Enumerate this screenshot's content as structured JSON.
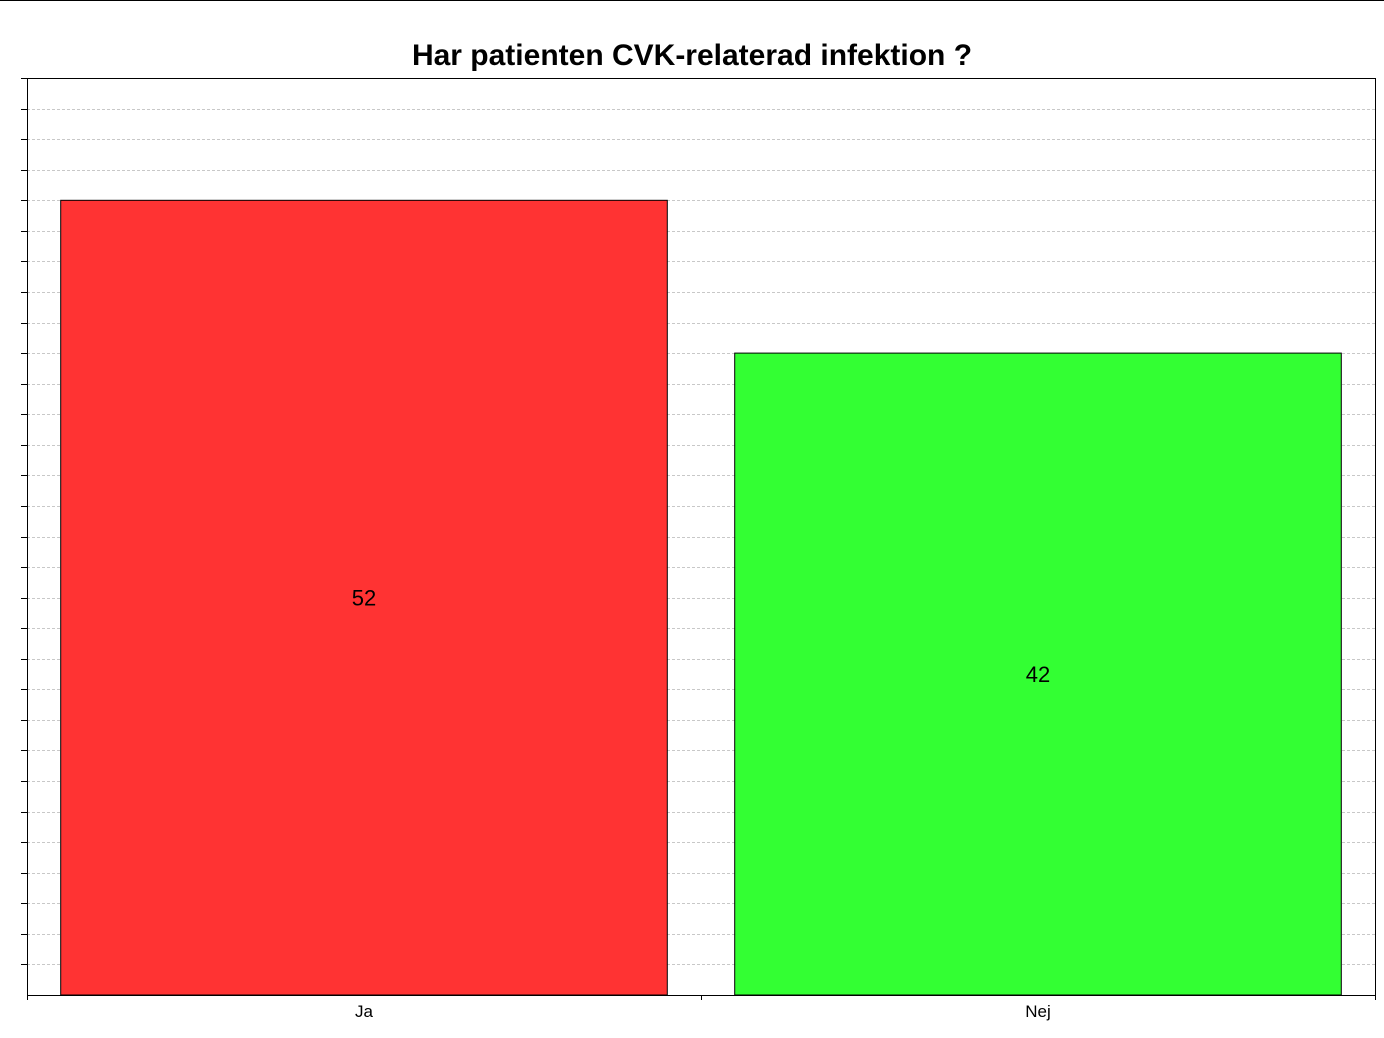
{
  "chart_data": {
    "type": "bar",
    "title": "Har patienten CVK-relaterad infektion ?",
    "xlabel": "",
    "ylabel": "",
    "categories": [
      "Ja",
      "Nej"
    ],
    "values": [
      52,
      42
    ],
    "colors": [
      "#ff3333",
      "#33ff33"
    ],
    "ylim": [
      0,
      60
    ],
    "grid": true,
    "legend": "none",
    "data_labels": true
  }
}
